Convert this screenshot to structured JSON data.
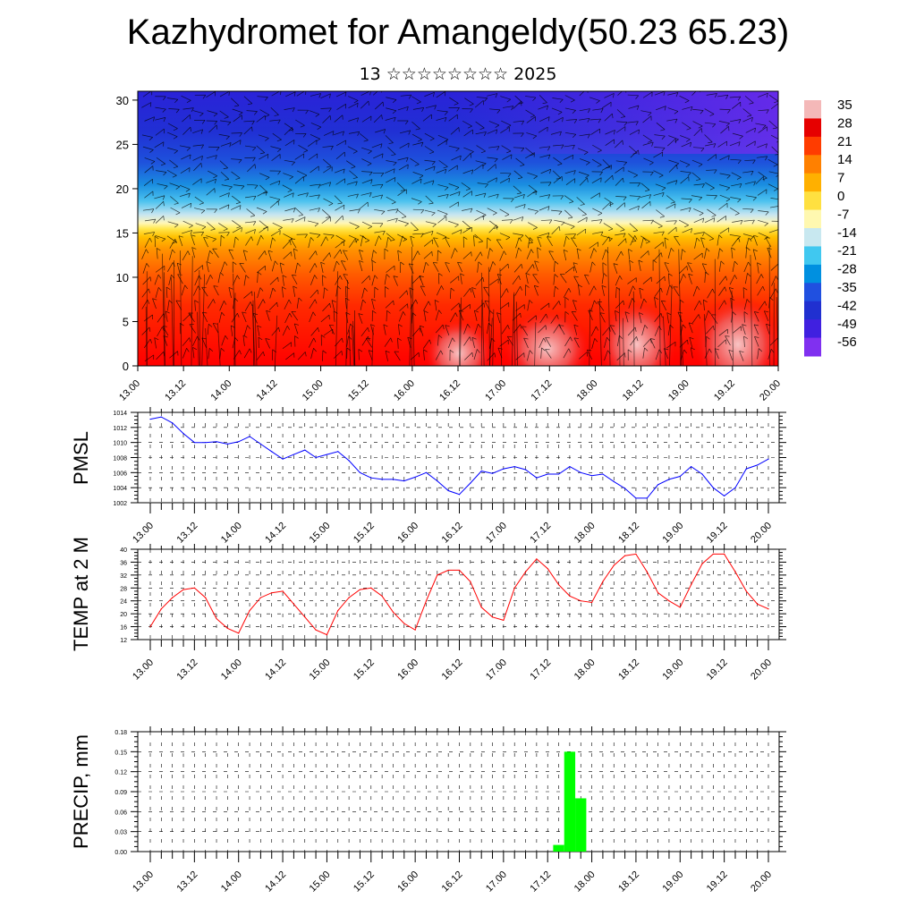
{
  "title": "Kazhydromet for Amangeldy(50.23 65.23)",
  "subtitle": "13 ☆☆☆☆☆☆☆☆ 2025",
  "chart_data": [
    {
      "type": "heatmap",
      "description_free": true,
      "y_ticks": [
        "0",
        "5",
        "10",
        "15",
        "20",
        "25",
        "30"
      ],
      "ylim": [
        0,
        31
      ],
      "x_ticks": [
        "13.00",
        "13.12",
        "14.00",
        "14.12",
        "15.00",
        "15.12",
        "16.00",
        "16.12",
        "17.00",
        "17.12",
        "18.00",
        "18.12",
        "19.00",
        "19.12",
        "20.00"
      ],
      "colorbar_labels": [
        "35",
        "28",
        "21",
        "14",
        "7",
        "0",
        "-7",
        "-14",
        "-21",
        "-28",
        "-35",
        "-42",
        "-49",
        "-56"
      ],
      "colorbar_colors": [
        "#f4b8b8",
        "#e60000",
        "#ff3c00",
        "#ff8000",
        "#ffb000",
        "#ffe040",
        "#fff8b0",
        "#c8e8f0",
        "#40c8f0",
        "#0090e0",
        "#2050e0",
        "#2030d0",
        "#4020e0",
        "#8030f0"
      ]
    },
    {
      "type": "line",
      "ylabel": "PMSL",
      "ylim": [
        1002,
        1014
      ],
      "y_ticks": [
        "1014",
        "1012",
        "1010",
        "1008",
        "1006",
        "1004",
        "1002"
      ],
      "x_ticks": [
        "13.00",
        "13.12",
        "14.00",
        "14.12",
        "15.00",
        "15.12",
        "16.00",
        "16.12",
        "17.00",
        "17.12",
        "18.00",
        "18.12",
        "19.00",
        "19.12",
        "20.00"
      ],
      "color": "#0000ff",
      "values": [
        1013.1,
        1013.4,
        1012.6,
        1011.2,
        1010.0,
        1010.0,
        1010.1,
        1009.8,
        1010.1,
        1010.8,
        1009.8,
        1008.8,
        1007.8,
        1008.4,
        1009.0,
        1008.0,
        1008.4,
        1008.8,
        1007.6,
        1006.0,
        1005.3,
        1005.1,
        1005.1,
        1004.9,
        1005.4,
        1006.0,
        1004.9,
        1003.6,
        1003.1,
        1004.6,
        1006.2,
        1005.9,
        1006.5,
        1006.8,
        1006.4,
        1005.3,
        1005.8,
        1005.8,
        1006.8,
        1006.0,
        1005.6,
        1005.8,
        1004.8,
        1003.9,
        1002.6,
        1002.6,
        1004.4,
        1005.1,
        1005.5,
        1006.8,
        1005.8,
        1004.0,
        1002.9,
        1004.0,
        1006.5,
        1007.0,
        1007.8
      ]
    },
    {
      "type": "line",
      "ylabel": "TEMP at 2 M",
      "ylim": [
        12,
        40
      ],
      "y_ticks": [
        "40",
        "36",
        "32",
        "28",
        "24",
        "20",
        "16",
        "12"
      ],
      "x_ticks": [
        "13.00",
        "13.12",
        "14.00",
        "14.12",
        "15.00",
        "15.12",
        "16.00",
        "16.12",
        "17.00",
        "17.12",
        "18.00",
        "18.12",
        "19.00",
        "19.12",
        "20.00"
      ],
      "color": "#ff0000",
      "values": [
        16.0,
        21.5,
        25.0,
        27.5,
        28.0,
        25.0,
        18.5,
        15.5,
        14.0,
        21.0,
        25.0,
        26.5,
        27.0,
        23.0,
        19.0,
        15.0,
        13.5,
        21.0,
        25.0,
        27.5,
        28.0,
        25.5,
        20.5,
        17.0,
        15.0,
        24.0,
        32.0,
        33.5,
        33.5,
        30.0,
        22.0,
        19.0,
        18.0,
        28.0,
        33.0,
        37.0,
        34.0,
        29.0,
        25.5,
        24.0,
        23.5,
        30.0,
        35.0,
        38.0,
        38.5,
        33.0,
        26.5,
        24.0,
        22.0,
        29.0,
        35.5,
        38.5,
        38.5,
        33.0,
        27.0,
        23.0,
        21.5
      ]
    },
    {
      "type": "bar",
      "ylabel": "PRECIP, mm",
      "ylim": [
        0,
        0.18
      ],
      "y_ticks": [
        "0.18",
        "0.15",
        "0.12",
        "0.09",
        "0.06",
        "0.03",
        "0.00"
      ],
      "x_ticks": [
        "13.00",
        "13.12",
        "14.00",
        "14.12",
        "15.00",
        "15.12",
        "16.00",
        "16.12",
        "17.00",
        "17.12",
        "18.00",
        "18.12",
        "19.00",
        "19.12",
        "20.00"
      ],
      "color": "#00ff00",
      "bars": [
        {
          "x_hour": 111,
          "value": 0.01
        },
        {
          "x_hour": 114,
          "value": 0.15
        },
        {
          "x_hour": 117,
          "value": 0.08
        }
      ]
    }
  ]
}
